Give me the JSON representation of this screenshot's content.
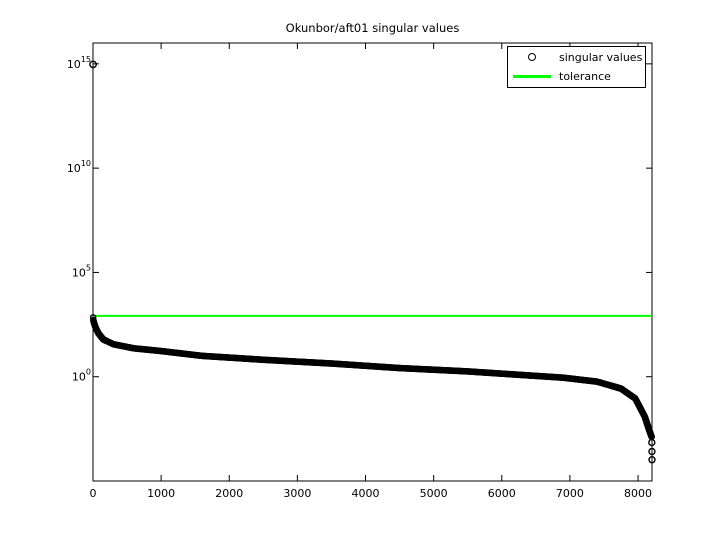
{
  "figure": {
    "background": "#ffffff",
    "axes_color": "#000000"
  },
  "chart_data": {
    "type": "scatter",
    "title": "Okunbor/aft01 singular values",
    "xlabel": "",
    "ylabel": "",
    "grid": false,
    "xlim": [
      0,
      8205
    ],
    "ylim_log10": [
      -5,
      16
    ],
    "x_ticks": [
      0,
      1000,
      2000,
      3000,
      4000,
      5000,
      6000,
      7000,
      8000
    ],
    "x_tick_labels": [
      "0",
      "1000",
      "2000",
      "3000",
      "4000",
      "5000",
      "6000",
      "7000",
      "8000"
    ],
    "y_tick_base": "10",
    "y_tick_exponents": [
      0,
      5,
      10,
      15
    ],
    "legend": {
      "position": "top-right",
      "entries": [
        {
          "label": "singular values",
          "marker": "open-circle",
          "color": "#000000"
        },
        {
          "label": "tolerance",
          "marker": "line",
          "color": "#00ff00"
        }
      ]
    },
    "marker_color": "#000000",
    "tolerance_color": "#00ff00",
    "tolerance": 830,
    "first_point": [
      1,
      940000000000000.0
    ],
    "series_anchors": [
      [
        2,
        700
      ],
      [
        5,
        520
      ],
      [
        15,
        380
      ],
      [
        40,
        220
      ],
      [
        80,
        120
      ],
      [
        150,
        62
      ],
      [
        300,
        36
      ],
      [
        600,
        23
      ],
      [
        1000,
        17
      ],
      [
        1600,
        10
      ],
      [
        2500,
        6.5
      ],
      [
        3500,
        4.3
      ],
      [
        4500,
        2.6
      ],
      [
        5500,
        1.8
      ],
      [
        6000,
        1.4
      ],
      [
        6900,
        0.9
      ],
      [
        7400,
        0.58
      ],
      [
        7750,
        0.27
      ],
      [
        7960,
        0.09
      ],
      [
        8100,
        0.012
      ],
      [
        8160,
        0.003
      ],
      [
        8200,
        0.0013
      ]
    ],
    "tail_points": [
      [
        8202,
        0.0007
      ],
      [
        8204,
        0.00026
      ],
      [
        8205,
        0.000105
      ]
    ]
  }
}
